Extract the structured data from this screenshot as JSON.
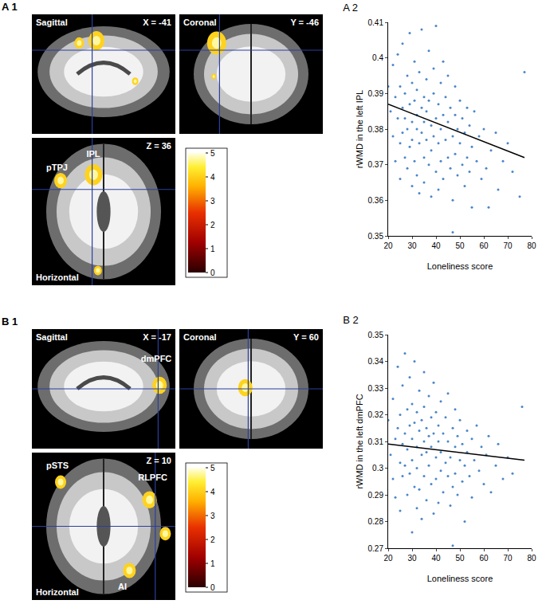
{
  "panels": [
    {
      "label": "A 1",
      "views": [
        {
          "name": "Sagittal",
          "coord": "X = -41",
          "regions": []
        },
        {
          "name": "Coronal",
          "coord": "Y = -46",
          "regions": []
        },
        {
          "name": "Horizontal",
          "coord": "Z = 36",
          "regions": [
            "IPL",
            "pTPJ"
          ]
        }
      ],
      "colorbar": {
        "range": [
          0,
          5
        ],
        "ticks": [
          0,
          1,
          2,
          3,
          4,
          5
        ]
      }
    },
    {
      "label": "B 1",
      "views": [
        {
          "name": "Sagittal",
          "coord": "X = -17",
          "regions": [
            "dmPFC"
          ]
        },
        {
          "name": "Coronal",
          "coord": "Y = 60",
          "regions": []
        },
        {
          "name": "Horizontal",
          "coord": "Z = 10",
          "regions": [
            "pSTS",
            "RLPFC",
            "AI"
          ]
        }
      ],
      "colorbar": {
        "range": [
          0,
          5
        ],
        "ticks": [
          0,
          1,
          2,
          3,
          4,
          5
        ]
      }
    }
  ],
  "chart_data": [
    {
      "type": "scatter",
      "title": "A 2",
      "x_label": "Loneliness score",
      "y_label": "rWMD in the left IPL",
      "xlim": [
        20,
        80
      ],
      "xticks": [
        20,
        30,
        40,
        50,
        60,
        70,
        80
      ],
      "ylim": [
        0.35,
        0.41
      ],
      "yticks": [
        0.35,
        0.36,
        0.37,
        0.38,
        0.39,
        0.4,
        0.41
      ],
      "series": [
        {
          "type": "scatter",
          "marker": "circle",
          "color": "#4a86c8",
          "x": [
            20,
            21,
            22,
            22,
            23,
            23,
            24,
            24,
            25,
            25,
            25,
            26,
            26,
            26,
            27,
            27,
            27,
            28,
            28,
            28,
            29,
            29,
            29,
            30,
            30,
            30,
            30,
            31,
            31,
            31,
            32,
            32,
            32,
            32,
            33,
            33,
            33,
            34,
            34,
            34,
            35,
            35,
            35,
            35,
            36,
            36,
            36,
            37,
            37,
            37,
            38,
            38,
            38,
            39,
            39,
            39,
            40,
            40,
            40,
            41,
            41,
            41,
            42,
            42,
            42,
            43,
            43,
            43,
            44,
            44,
            45,
            45,
            45,
            46,
            46,
            47,
            47,
            48,
            48,
            48,
            49,
            49,
            50,
            50,
            51,
            51,
            52,
            52,
            53,
            53,
            54,
            54,
            55,
            55,
            56,
            57,
            58,
            59,
            60,
            61,
            62,
            63,
            65,
            66,
            68,
            70,
            72,
            75,
            77,
            47
          ],
          "values": [
            0.392,
            0.385,
            0.378,
            0.398,
            0.371,
            0.389,
            0.383,
            0.401,
            0.376,
            0.392,
            0.366,
            0.386,
            0.379,
            0.404,
            0.372,
            0.39,
            0.383,
            0.395,
            0.369,
            0.38,
            0.387,
            0.375,
            0.407,
            0.382,
            0.364,
            0.393,
            0.377,
            0.388,
            0.371,
            0.399,
            0.38,
            0.367,
            0.391,
            0.384,
            0.376,
            0.396,
            0.362,
            0.386,
            0.379,
            0.408,
            0.372,
            0.389,
            0.382,
            0.365,
            0.394,
            0.377,
            0.385,
            0.37,
            0.388,
            0.402,
            0.381,
            0.374,
            0.361,
            0.39,
            0.378,
            0.397,
            0.383,
            0.368,
            0.409,
            0.376,
            0.387,
            0.363,
            0.38,
            0.393,
            0.371,
            0.384,
            0.366,
            0.399,
            0.377,
            0.389,
            0.372,
            0.382,
            0.395,
            0.369,
            0.386,
            0.378,
            0.36,
            0.384,
            0.373,
            0.392,
            0.367,
            0.38,
            0.376,
            0.388,
            0.37,
            0.383,
            0.364,
            0.379,
            0.386,
            0.372,
            0.368,
            0.381,
            0.375,
            0.358,
            0.385,
            0.371,
            0.378,
            0.366,
            0.38,
            0.369,
            0.358,
            0.374,
            0.379,
            0.363,
            0.371,
            0.376,
            0.368,
            0.361,
            0.396,
            0.351
          ]
        },
        {
          "type": "line",
          "line_style": "solid",
          "color": "#000000",
          "x": [
            20,
            77
          ],
          "values": [
            0.387,
            0.372
          ]
        }
      ]
    },
    {
      "type": "scatter",
      "title": "B 2",
      "x_label": "Loneliness score",
      "y_label": "rWMD in the left dmPFC",
      "xlim": [
        20,
        80
      ],
      "xticks": [
        20,
        30,
        40,
        50,
        60,
        70,
        80
      ],
      "ylim": [
        0.27,
        0.35
      ],
      "yticks": [
        0.27,
        0.28,
        0.29,
        0.3,
        0.31,
        0.32,
        0.33,
        0.34,
        0.35
      ],
      "series": [
        {
          "type": "scatter",
          "marker": "circle",
          "color": "#4a86c8",
          "x": [
            20,
            21,
            22,
            22,
            23,
            23,
            24,
            24,
            25,
            25,
            25,
            26,
            26,
            26,
            27,
            27,
            27,
            28,
            28,
            28,
            29,
            29,
            29,
            30,
            30,
            30,
            30,
            31,
            31,
            31,
            32,
            32,
            32,
            32,
            33,
            33,
            33,
            34,
            34,
            34,
            35,
            35,
            35,
            35,
            36,
            36,
            36,
            37,
            37,
            37,
            38,
            38,
            38,
            39,
            39,
            39,
            40,
            40,
            40,
            41,
            41,
            41,
            42,
            42,
            42,
            43,
            43,
            44,
            44,
            45,
            45,
            45,
            46,
            46,
            47,
            47,
            48,
            48,
            48,
            49,
            49,
            50,
            50,
            51,
            51,
            52,
            52,
            53,
            53,
            54,
            55,
            55,
            56,
            57,
            58,
            59,
            60,
            61,
            62,
            63,
            65,
            66,
            68,
            70,
            72,
            76,
            47
          ],
          "values": [
            0.318,
            0.305,
            0.296,
            0.326,
            0.311,
            0.289,
            0.315,
            0.338,
            0.302,
            0.32,
            0.284,
            0.309,
            0.331,
            0.297,
            0.313,
            0.343,
            0.301,
            0.322,
            0.29,
            0.307,
            0.316,
            0.298,
            0.334,
            0.311,
            0.276,
            0.324,
            0.303,
            0.317,
            0.293,
            0.34,
            0.308,
            0.285,
            0.321,
            0.3,
            0.314,
            0.329,
            0.292,
            0.305,
            0.318,
            0.281,
            0.31,
            0.336,
            0.297,
            0.323,
            0.306,
            0.288,
            0.315,
            0.301,
            0.327,
            0.312,
            0.294,
            0.319,
            0.308,
            0.283,
            0.313,
            0.332,
            0.304,
            0.296,
            0.321,
            0.31,
            0.287,
            0.316,
            0.299,
            0.325,
            0.306,
            0.313,
            0.291,
            0.302,
            0.319,
            0.297,
            0.31,
            0.328,
            0.304,
            0.286,
            0.315,
            0.293,
            0.308,
            0.322,
            0.298,
            0.312,
            0.29,
            0.303,
            0.318,
            0.295,
            0.309,
            0.301,
            0.28,
            0.314,
            0.306,
            0.297,
            0.311,
            0.289,
            0.303,
            0.316,
            0.299,
            0.308,
            0.294,
            0.305,
            0.312,
            0.291,
            0.301,
            0.309,
            0.296,
            0.304,
            0.298,
            0.323,
            0.271
          ]
        },
        {
          "type": "line",
          "line_style": "solid",
          "color": "#000000",
          "x": [
            20,
            77
          ],
          "values": [
            0.309,
            0.303
          ]
        }
      ]
    }
  ]
}
